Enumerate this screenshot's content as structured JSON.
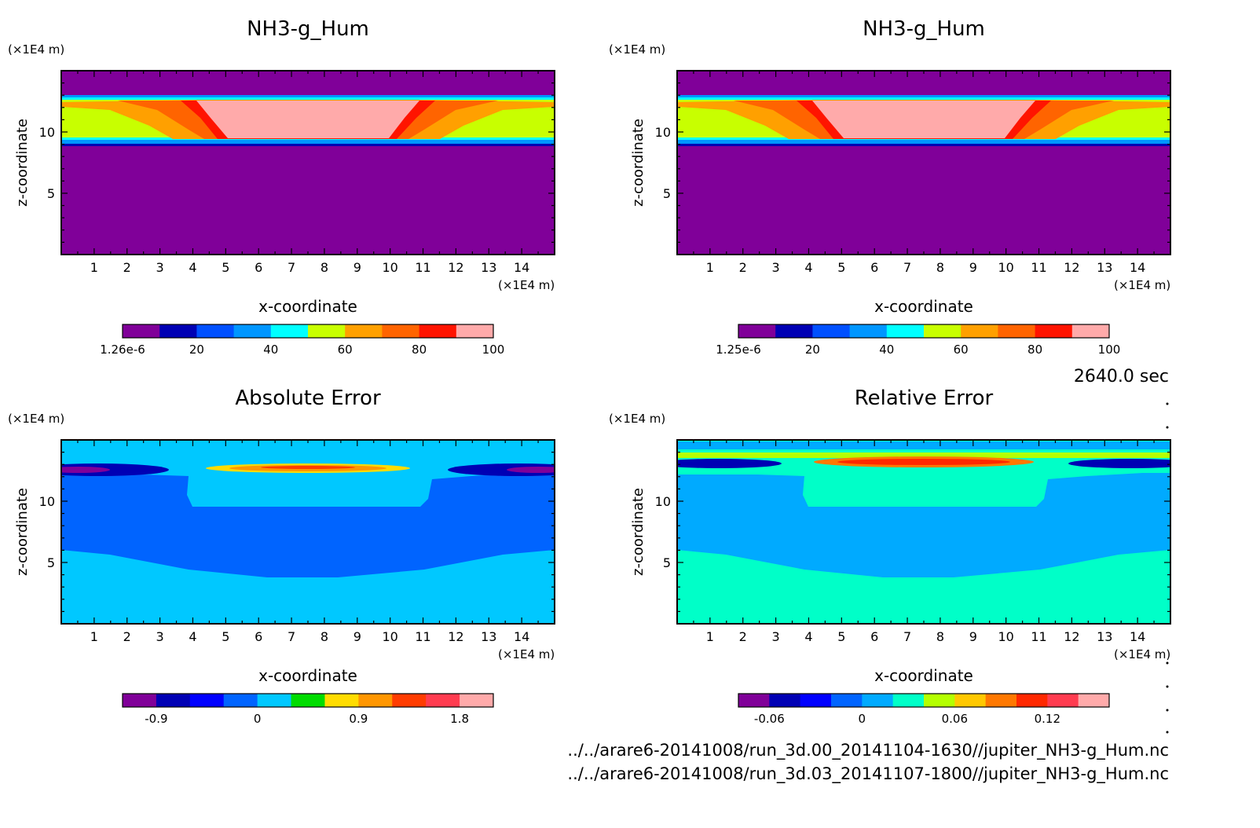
{
  "time_label": "2640.0 sec",
  "file_paths": [
    "../../arare6-20141008/run_3d.00_20141104-1630//jupiter_NH3-g_Hum.nc",
    "../../arare6-20141008/run_3d.03_20141107-1800//jupiter_NH3-g_Hum.nc"
  ],
  "chart_data": [
    {
      "type": "heatmap",
      "id": "p1",
      "title": "NH3-g_Hum",
      "xlabel": "x-coordinate",
      "ylabel": "z-coordinate",
      "x_unit": "(×1E4 m)",
      "y_unit": "(×1E4 m)",
      "xlim": [
        0,
        15
      ],
      "ylim": [
        0,
        15
      ],
      "x_ticks": [
        1,
        2,
        3,
        4,
        5,
        6,
        7,
        8,
        9,
        10,
        11,
        12,
        13,
        14
      ],
      "y_ticks": [
        5,
        10
      ],
      "colorbar": {
        "colors": [
          "#800099",
          "#0000b4",
          "#0050ff",
          "#0096ff",
          "#00ffff",
          "#c8ff00",
          "#ffa000",
          "#ff6400",
          "#ff1400",
          "#ffaaaa"
        ],
        "tick_labels": [
          "1.26e-6",
          "20",
          "40",
          "60",
          "80",
          "100"
        ],
        "tick_positions": [
          0,
          2,
          4,
          6,
          8,
          10
        ]
      }
    },
    {
      "type": "heatmap",
      "id": "p2",
      "title": "NH3-g_Hum",
      "xlabel": "x-coordinate",
      "ylabel": "z-coordinate",
      "x_unit": "(×1E4 m)",
      "y_unit": "(×1E4 m)",
      "xlim": [
        0,
        15
      ],
      "ylim": [
        0,
        15
      ],
      "x_ticks": [
        1,
        2,
        3,
        4,
        5,
        6,
        7,
        8,
        9,
        10,
        11,
        12,
        13,
        14
      ],
      "y_ticks": [
        5,
        10
      ],
      "colorbar": {
        "colors": [
          "#800099",
          "#0000b4",
          "#0050ff",
          "#0096ff",
          "#00ffff",
          "#c8ff00",
          "#ffa000",
          "#ff6400",
          "#ff1400",
          "#ffaaaa"
        ],
        "tick_labels": [
          "1.25e-6",
          "20",
          "40",
          "60",
          "80",
          "100"
        ],
        "tick_positions": [
          0,
          2,
          4,
          6,
          8,
          10
        ]
      }
    },
    {
      "type": "heatmap",
      "id": "p3",
      "title": "Absolute Error",
      "xlabel": "x-coordinate",
      "ylabel": "z-coordinate",
      "x_unit": "(×1E4 m)",
      "y_unit": "(×1E4 m)",
      "xlim": [
        0,
        15
      ],
      "ylim": [
        0,
        15
      ],
      "x_ticks": [
        1,
        2,
        3,
        4,
        5,
        6,
        7,
        8,
        9,
        10,
        11,
        12,
        13,
        14
      ],
      "y_ticks": [
        5,
        10
      ],
      "colorbar": {
        "colors": [
          "#800099",
          "#0000b4",
          "#0000ff",
          "#0064ff",
          "#00c8ff",
          "#00dc00",
          "#ffdc00",
          "#ff9600",
          "#ff3c00",
          "#ff3c50",
          "#ffaaaa"
        ],
        "tick_labels": [
          "-0.9",
          "0",
          "0.9",
          "1.8"
        ],
        "tick_positions": [
          1,
          4,
          7,
          10
        ]
      }
    },
    {
      "type": "heatmap",
      "id": "p4",
      "title": "Relative Error",
      "xlabel": "x-coordinate",
      "ylabel": "z-coordinate",
      "x_unit": "(×1E4 m)",
      "y_unit": "(×1E4 m)",
      "xlim": [
        0,
        15
      ],
      "ylim": [
        0,
        15
      ],
      "x_ticks": [
        1,
        2,
        3,
        4,
        5,
        6,
        7,
        8,
        9,
        10,
        11,
        12,
        13,
        14
      ],
      "y_ticks": [
        5,
        10
      ],
      "colorbar": {
        "colors": [
          "#800099",
          "#0000b4",
          "#0000ff",
          "#0064ff",
          "#00aaff",
          "#00ffc8",
          "#b4ff00",
          "#ffc800",
          "#ff7800",
          "#ff2800",
          "#ff3c50",
          "#ffaaaa"
        ],
        "tick_labels": [
          "-0.06",
          "0",
          "0.06",
          "0.12"
        ],
        "tick_positions": [
          1,
          4,
          7,
          10
        ]
      }
    }
  ]
}
